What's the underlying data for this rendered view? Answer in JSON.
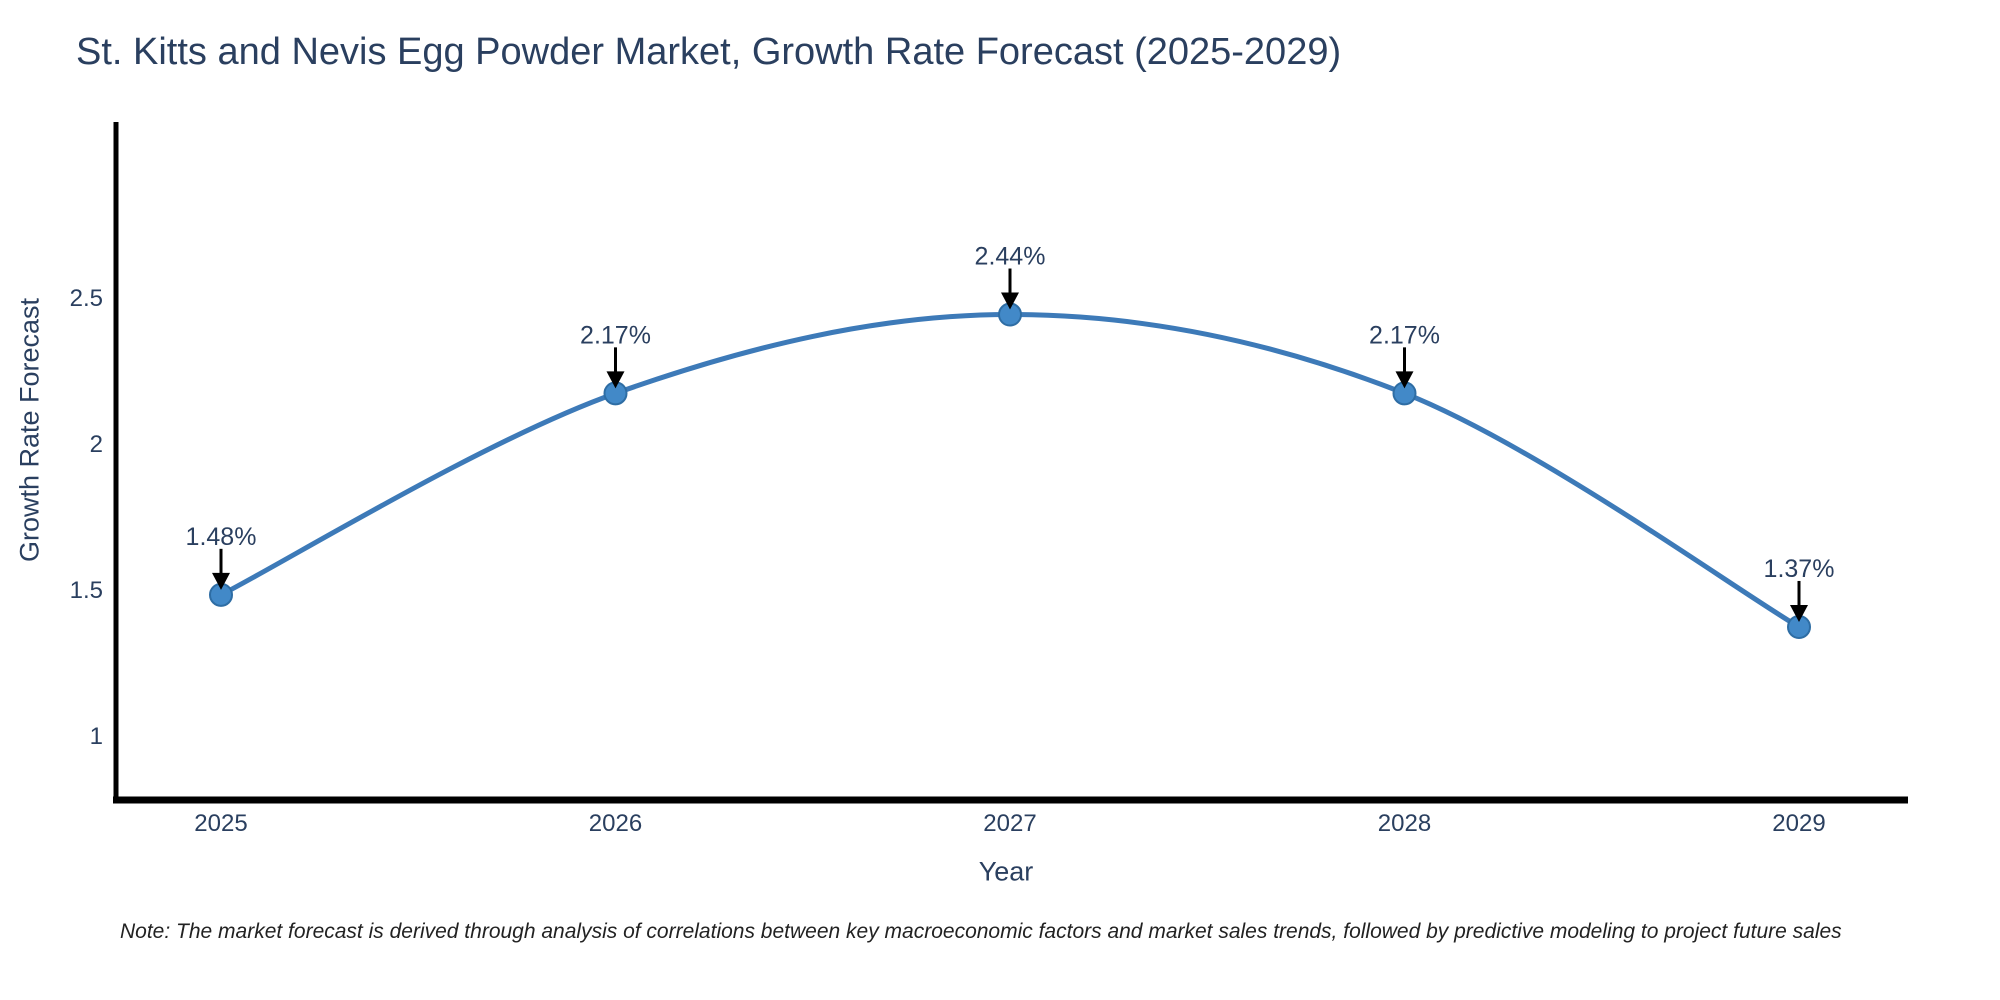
{
  "page": {
    "background": "#ffffff"
  },
  "chart_data": {
    "type": "line",
    "line_shape": "spline",
    "title": "St. Kitts and Nevis Egg Powder Market, Growth Rate Forecast (2025-2029)",
    "xlabel": "Year",
    "ylabel": "Growth Rate Forecast",
    "categories": [
      "2025",
      "2026",
      "2027",
      "2028",
      "2029"
    ],
    "values": [
      1.48,
      2.17,
      2.44,
      2.17,
      1.37
    ],
    "point_labels": [
      "1.48%",
      "2.17%",
      "2.44%",
      "2.17%",
      "1.37%"
    ],
    "ytick_labels": [
      "1",
      "1.5",
      "2",
      "2.5"
    ],
    "ytick_values": [
      1,
      1.5,
      2,
      2.5
    ],
    "ylim": [
      0.8,
      3.0
    ],
    "grid": false,
    "legend": "none",
    "colors": {
      "line": "#3d7ab8",
      "marker_fill": "#4289c8",
      "marker_stroke": "#2e6da4",
      "axis": "#000000",
      "text": "#2a3f5f",
      "annotation_arrow": "#000000",
      "note_text": "#222222"
    },
    "note": "Note: The market forecast is derived through analysis of correlations between key macroeconomic factors and market sales trends, followed by predictive modeling to project future sales"
  }
}
